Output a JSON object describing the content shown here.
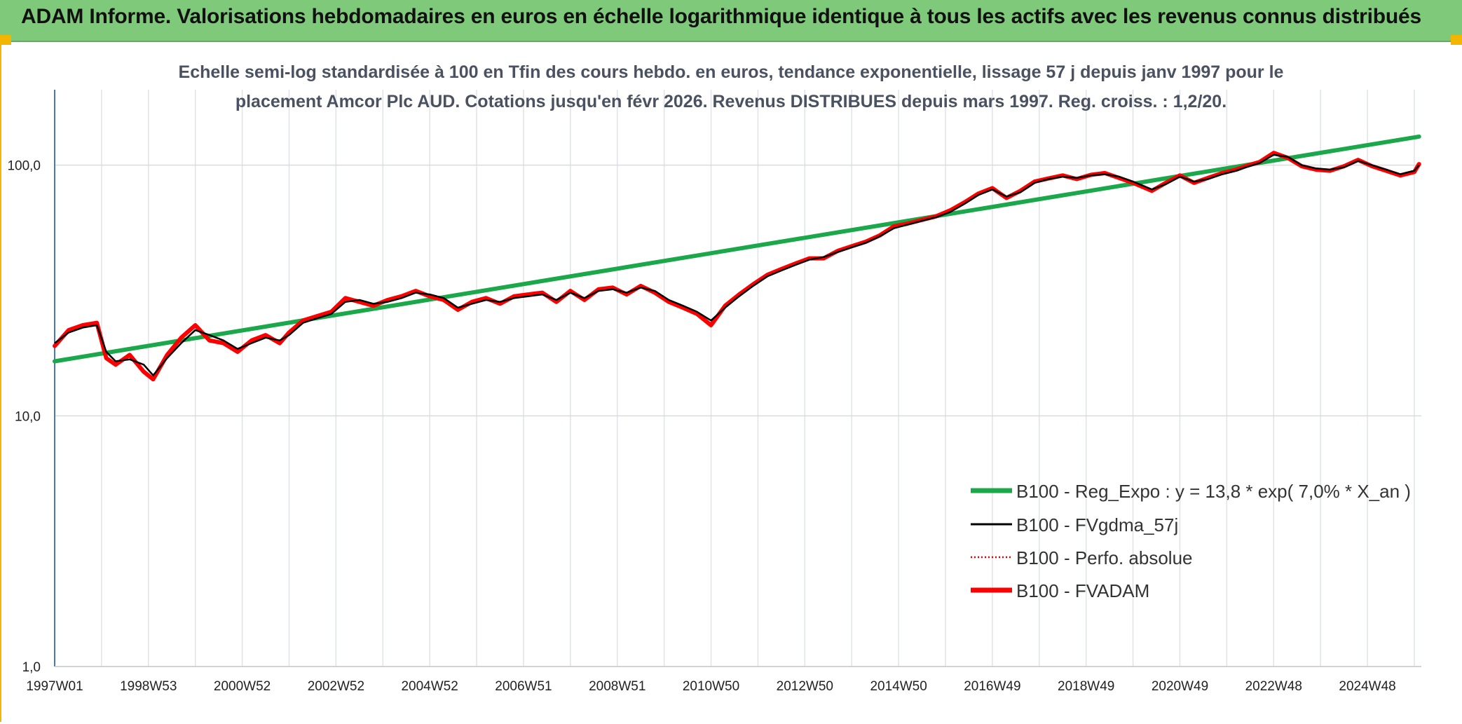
{
  "banner": {
    "title": "ADAM Informe. Valorisations hebdomadaires en euros en échelle logarithmique identique à tous les actifs avec les revenus connus distribués"
  },
  "chart_data": {
    "type": "line",
    "subtitle_lines": [
      "Echelle semi-log standardisée à 100 en Tfin des cours hebdo. en euros, tendance exponentielle, lissage 57 j depuis janv 1997 pour le",
      "placement Amcor Plc AUD. Cotations jusqu'en févr 2026. Revenus DISTRIBUES depuis mars 1997. Reg. croiss. : 1,2/20."
    ],
    "y_scale": "log",
    "ylim": [
      1,
      200
    ],
    "y_ticks": [
      {
        "value": 1,
        "label": "1,0"
      },
      {
        "value": 10,
        "label": "10,0"
      },
      {
        "value": 100,
        "label": "100,0"
      }
    ],
    "xlim": [
      1997.0,
      2026.15
    ],
    "x_ticks": [
      {
        "value": 1997.0,
        "label": "1997W01"
      },
      {
        "value": 1999.0,
        "label": "1998W53"
      },
      {
        "value": 2001.0,
        "label": "2000W52"
      },
      {
        "value": 2003.0,
        "label": "2002W52"
      },
      {
        "value": 2005.0,
        "label": "2004W52"
      },
      {
        "value": 2007.0,
        "label": "2006W51"
      },
      {
        "value": 2009.0,
        "label": "2008W51"
      },
      {
        "value": 2011.0,
        "label": "2010W50"
      },
      {
        "value": 2013.0,
        "label": "2012W50"
      },
      {
        "value": 2015.0,
        "label": "2014W50"
      },
      {
        "value": 2017.0,
        "label": "2016W49"
      },
      {
        "value": 2019.0,
        "label": "2018W49"
      },
      {
        "value": 2021.0,
        "label": "2020W49"
      },
      {
        "value": 2023.0,
        "label": "2022W48"
      },
      {
        "value": 2025.0,
        "label": "2024W48"
      }
    ],
    "grid": "vertical and horizontal, light grey",
    "legend_position": "bottom-right",
    "series": [
      {
        "name": "B100 - Reg_Expo : y = 13,8 * exp( 7,0% *  X_an )",
        "color": "#1aa84a",
        "style": "solid-thick",
        "x": [
          1997.0,
          2026.1
        ],
        "y": [
          16.5,
          130.0
        ]
      },
      {
        "name": "B100 - FVgdma_57j",
        "color": "#000000",
        "style": "solid",
        "x": [
          1997.0,
          1997.3,
          1997.6,
          1997.9,
          1998.1,
          1998.3,
          1998.6,
          1998.9,
          1999.1,
          1999.4,
          1999.7,
          2000.0,
          2000.3,
          2000.6,
          2000.9,
          2001.2,
          2001.5,
          2001.8,
          2002.0,
          2002.3,
          2002.6,
          2002.9,
          2003.2,
          2003.5,
          2003.8,
          2004.1,
          2004.4,
          2004.7,
          2005.0,
          2005.3,
          2005.6,
          2005.9,
          2006.2,
          2006.5,
          2006.8,
          2007.1,
          2007.4,
          2007.7,
          2008.0,
          2008.3,
          2008.6,
          2008.9,
          2009.2,
          2009.5,
          2009.8,
          2010.1,
          2010.4,
          2010.7,
          2011.0,
          2011.3,
          2011.6,
          2011.9,
          2012.2,
          2012.5,
          2012.8,
          2013.1,
          2013.4,
          2013.7,
          2014.0,
          2014.3,
          2014.6,
          2014.9,
          2015.2,
          2015.5,
          2015.8,
          2016.1,
          2016.4,
          2016.7,
          2017.0,
          2017.3,
          2017.6,
          2017.9,
          2018.2,
          2018.5,
          2018.8,
          2019.1,
          2019.4,
          2019.7,
          2020.0,
          2020.2,
          2020.4,
          2020.7,
          2021.0,
          2021.3,
          2021.6,
          2021.9,
          2022.2,
          2022.4,
          2022.7,
          2023.0,
          2023.3,
          2023.6,
          2023.9,
          2024.2,
          2024.5,
          2024.8,
          2025.1,
          2025.4,
          2025.7,
          2026.0,
          2026.1
        ],
        "y": [
          19.5,
          21.5,
          22.5,
          23.0,
          18.0,
          16.5,
          16.8,
          16.0,
          14.5,
          17.0,
          19.5,
          22.0,
          21.0,
          20.0,
          18.5,
          19.5,
          20.5,
          20.0,
          21.0,
          23.5,
          24.5,
          25.5,
          28.5,
          29.0,
          28.0,
          28.5,
          29.5,
          31.0,
          30.5,
          29.5,
          27.0,
          28.0,
          29.0,
          28.5,
          29.5,
          30.0,
          30.5,
          29.0,
          31.0,
          29.5,
          31.5,
          32.0,
          31.0,
          32.5,
          31.5,
          29.0,
          27.5,
          26.0,
          24.0,
          27.0,
          30.0,
          33.0,
          36.0,
          38.0,
          40.0,
          42.0,
          43.0,
          45.0,
          47.0,
          49.0,
          52.0,
          56.0,
          58.0,
          60.0,
          62.0,
          65.0,
          70.0,
          76.0,
          80.0,
          75.0,
          78.0,
          85.0,
          88.0,
          90.0,
          89.0,
          91.0,
          92.0,
          90.0,
          86.0,
          83.0,
          80.0,
          84.0,
          90.0,
          86.0,
          88.0,
          92.0,
          95.0,
          98.0,
          102.0,
          110.0,
          108.0,
          100.0,
          97.0,
          96.0,
          98.0,
          104.0,
          100.0,
          96.0,
          92.0,
          95.0,
          100.0
        ]
      },
      {
        "name": "B100 - Perfo. absolue",
        "color": "#e00000",
        "style": "dotted"
      },
      {
        "name": "B100 - FVADAM",
        "color": "#ff0000",
        "style": "solid-thick",
        "x": [
          1997.0,
          1997.3,
          1997.6,
          1997.9,
          1998.1,
          1998.3,
          1998.6,
          1998.9,
          1999.1,
          1999.4,
          1999.7,
          2000.0,
          2000.3,
          2000.6,
          2000.9,
          2001.2,
          2001.5,
          2001.8,
          2002.0,
          2002.3,
          2002.6,
          2002.9,
          2003.2,
          2003.5,
          2003.8,
          2004.1,
          2004.4,
          2004.7,
          2005.0,
          2005.3,
          2005.6,
          2005.9,
          2006.2,
          2006.5,
          2006.8,
          2007.1,
          2007.4,
          2007.7,
          2008.0,
          2008.3,
          2008.6,
          2008.9,
          2009.2,
          2009.5,
          2009.8,
          2010.1,
          2010.4,
          2010.7,
          2011.0,
          2011.3,
          2011.6,
          2011.9,
          2012.2,
          2012.5,
          2012.8,
          2013.1,
          2013.4,
          2013.7,
          2014.0,
          2014.3,
          2014.6,
          2014.9,
          2015.2,
          2015.5,
          2015.8,
          2016.1,
          2016.4,
          2016.7,
          2017.0,
          2017.3,
          2017.6,
          2017.9,
          2018.2,
          2018.5,
          2018.8,
          2019.1,
          2019.4,
          2019.7,
          2020.0,
          2020.2,
          2020.4,
          2020.7,
          2021.0,
          2021.3,
          2021.6,
          2021.9,
          2022.2,
          2022.4,
          2022.7,
          2023.0,
          2023.3,
          2023.6,
          2023.9,
          2024.2,
          2024.5,
          2024.8,
          2025.1,
          2025.4,
          2025.7,
          2026.0,
          2026.1
        ],
        "y": [
          19.0,
          22.0,
          23.0,
          23.5,
          17.0,
          16.0,
          17.5,
          15.0,
          14.0,
          17.5,
          20.5,
          23.0,
          20.0,
          19.5,
          18.0,
          20.0,
          21.0,
          19.5,
          21.5,
          24.0,
          25.0,
          26.0,
          29.5,
          28.5,
          27.5,
          29.0,
          30.0,
          31.5,
          30.0,
          29.0,
          26.5,
          28.5,
          29.5,
          28.0,
          30.0,
          30.5,
          31.0,
          28.5,
          31.5,
          29.0,
          32.0,
          32.5,
          30.5,
          33.0,
          31.0,
          28.5,
          27.0,
          25.5,
          23.0,
          27.5,
          30.5,
          33.5,
          36.5,
          38.5,
          40.5,
          42.5,
          42.5,
          45.5,
          47.5,
          49.5,
          52.5,
          57.0,
          58.5,
          60.5,
          62.5,
          66.0,
          71.0,
          77.0,
          81.0,
          74.0,
          79.0,
          86.0,
          88.5,
          91.0,
          88.0,
          91.5,
          93.0,
          89.0,
          85.0,
          82.0,
          79.0,
          85.0,
          91.0,
          85.0,
          89.0,
          93.0,
          96.0,
          99.0,
          103.0,
          112.0,
          107.0,
          99.0,
          96.0,
          95.0,
          99.0,
          105.0,
          99.0,
          95.0,
          91.0,
          94.0,
          101.0
        ]
      }
    ]
  }
}
